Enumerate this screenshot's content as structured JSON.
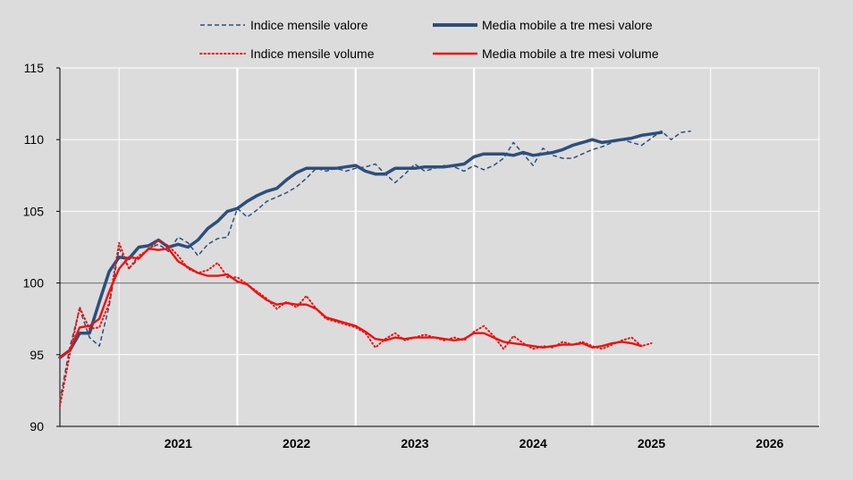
{
  "chart_data": {
    "type": "line",
    "title": "",
    "xlabel": "",
    "ylabel": "",
    "ylim": [
      90,
      115
    ],
    "yticks": [
      90,
      95,
      100,
      105,
      110,
      115
    ],
    "reference_line": 100,
    "x_start": "2020-07",
    "x_end": "2026-12",
    "year_ticks": [
      "2021",
      "2022",
      "2023",
      "2024",
      "2025",
      "2026"
    ],
    "grid": true,
    "legend_position": "top",
    "colors": {
      "valore": "#2c4f7c",
      "volume": "#ee1111",
      "grid": "#ffffff",
      "background": "#dcdcdc",
      "reference": "#808080"
    },
    "series": [
      {
        "key": "valore_mensile",
        "name": "Indice mensile valore",
        "style": "dashed",
        "start": "2020-07",
        "values": [
          91.8,
          95.5,
          98.2,
          96.2,
          95.6,
          98.4,
          102.4,
          101.0,
          101.7,
          102.4,
          102.7,
          102.2,
          103.2,
          102.8,
          101.9,
          102.7,
          103.1,
          103.2,
          105.2,
          104.6,
          105.1,
          105.7,
          106.0,
          106.3,
          106.7,
          107.3,
          108.0,
          107.8,
          108.0,
          107.8,
          108.0,
          108.1,
          108.3,
          107.6,
          107.0,
          107.6,
          108.3,
          107.8,
          108.0,
          108.2,
          108.1,
          107.8,
          108.2,
          107.9,
          108.2,
          108.7,
          109.8,
          109.0,
          108.2,
          109.4,
          108.9,
          108.7,
          108.7,
          109.0,
          109.3,
          109.5,
          109.8,
          110.0,
          109.8,
          109.6,
          110.1,
          110.6,
          110.0,
          110.5,
          110.6
        ]
      },
      {
        "key": "valore_media",
        "name": "Media mobile a tre mesi valore",
        "style": "solid-thick",
        "start": "2020-07",
        "values": [
          94.8,
          95.3,
          96.5,
          96.5,
          98.7,
          100.8,
          101.8,
          101.7,
          102.5,
          102.6,
          103.0,
          102.5,
          102.7,
          102.5,
          103.0,
          103.8,
          104.3,
          105.0,
          105.2,
          105.7,
          106.1,
          106.4,
          106.6,
          107.2,
          107.7,
          108.0,
          108.0,
          108.0,
          108.0,
          108.1,
          108.2,
          107.8,
          107.6,
          107.6,
          108.0,
          108.0,
          108.0,
          108.1,
          108.1,
          108.1,
          108.2,
          108.3,
          108.8,
          109.0,
          109.0,
          109.0,
          108.9,
          109.1,
          108.9,
          109.0,
          109.1,
          109.3,
          109.6,
          109.8,
          110.0,
          109.8,
          109.9,
          110.0,
          110.1,
          110.3,
          110.4,
          110.5
        ]
      },
      {
        "key": "volume_mensile",
        "name": "Indice mensile volume",
        "style": "dotted",
        "start": "2020-07",
        "values": [
          91.4,
          95.0,
          98.3,
          96.8,
          96.9,
          98.6,
          102.8,
          101.0,
          101.9,
          102.3,
          103.0,
          102.6,
          101.9,
          101.0,
          100.7,
          100.9,
          101.4,
          100.4,
          100.4,
          99.9,
          99.4,
          98.9,
          98.2,
          98.7,
          98.3,
          99.1,
          98.2,
          97.5,
          97.3,
          97.1,
          96.9,
          96.5,
          95.5,
          96.1,
          96.5,
          96.0,
          96.2,
          96.4,
          96.2,
          96.0,
          96.2,
          96.0,
          96.6,
          97.0,
          96.3,
          95.4,
          96.3,
          95.8,
          95.4,
          95.6,
          95.5,
          95.9,
          95.7,
          95.9,
          95.6,
          95.4,
          95.7,
          96.0,
          96.2,
          95.6,
          95.8
        ]
      },
      {
        "key": "volume_media",
        "name": "Media mobile a tre mesi volume",
        "style": "solid",
        "start": "2020-07",
        "values": [
          94.8,
          95.3,
          96.9,
          97.0,
          97.5,
          99.4,
          101.0,
          101.8,
          101.7,
          102.4,
          102.3,
          102.4,
          101.5,
          101.1,
          100.7,
          100.5,
          100.5,
          100.6,
          100.1,
          99.9,
          99.3,
          98.8,
          98.5,
          98.6,
          98.5,
          98.5,
          98.2,
          97.6,
          97.4,
          97.2,
          97.0,
          96.6,
          96.1,
          96.0,
          96.2,
          96.1,
          96.2,
          96.2,
          96.2,
          96.1,
          96.0,
          96.1,
          96.5,
          96.5,
          96.2,
          95.9,
          95.8,
          95.7,
          95.6,
          95.5,
          95.6,
          95.7,
          95.7,
          95.8,
          95.5,
          95.6,
          95.8,
          95.9,
          95.8,
          95.6
        ]
      }
    ]
  }
}
